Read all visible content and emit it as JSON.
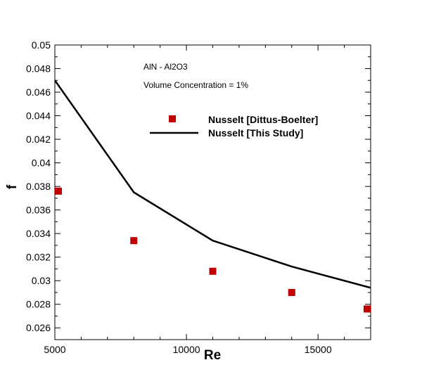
{
  "chart_data": {
    "type": "line",
    "xlabel": "Re",
    "ylabel": "f",
    "xlim": [
      5000,
      17000
    ],
    "ylim": [
      0.025,
      0.05
    ],
    "x_ticks": [
      5000,
      10000,
      15000
    ],
    "x_tick_labels": [
      "5000",
      "10000",
      "15000"
    ],
    "x_minor_step": 1000,
    "y_ticks": [
      0.026,
      0.028,
      0.03,
      0.032,
      0.034,
      0.036,
      0.038,
      0.04,
      0.042,
      0.044,
      0.046,
      0.048,
      0.05
    ],
    "y_tick_labels": [
      "0.026",
      "0.028",
      "0.03",
      "0.032",
      "0.034",
      "0.036",
      "0.038",
      "0.04",
      "0.042",
      "0.044",
      "0.046",
      "0.048",
      "0.05"
    ],
    "y_minor_step": 0.001,
    "grid": false,
    "legend_position": "top-center",
    "annotations": [
      "AlN - Al2O3",
      "Volume Concentration = 1%"
    ],
    "series": [
      {
        "name": "Nusselt [Dittus-Boelter]",
        "kind": "scatter",
        "marker": "square",
        "color": "#c00000",
        "x": [
          5000,
          8000,
          11000,
          14000,
          17000
        ],
        "y": [
          0.0376,
          0.0334,
          0.0308,
          0.029,
          0.0276
        ]
      },
      {
        "name": "Nusselt [This Study]",
        "kind": "line",
        "color": "#000000",
        "x": [
          5000,
          8000,
          11000,
          14000,
          17000
        ],
        "y": [
          0.047,
          0.0375,
          0.0334,
          0.0312,
          0.0294
        ]
      }
    ]
  }
}
